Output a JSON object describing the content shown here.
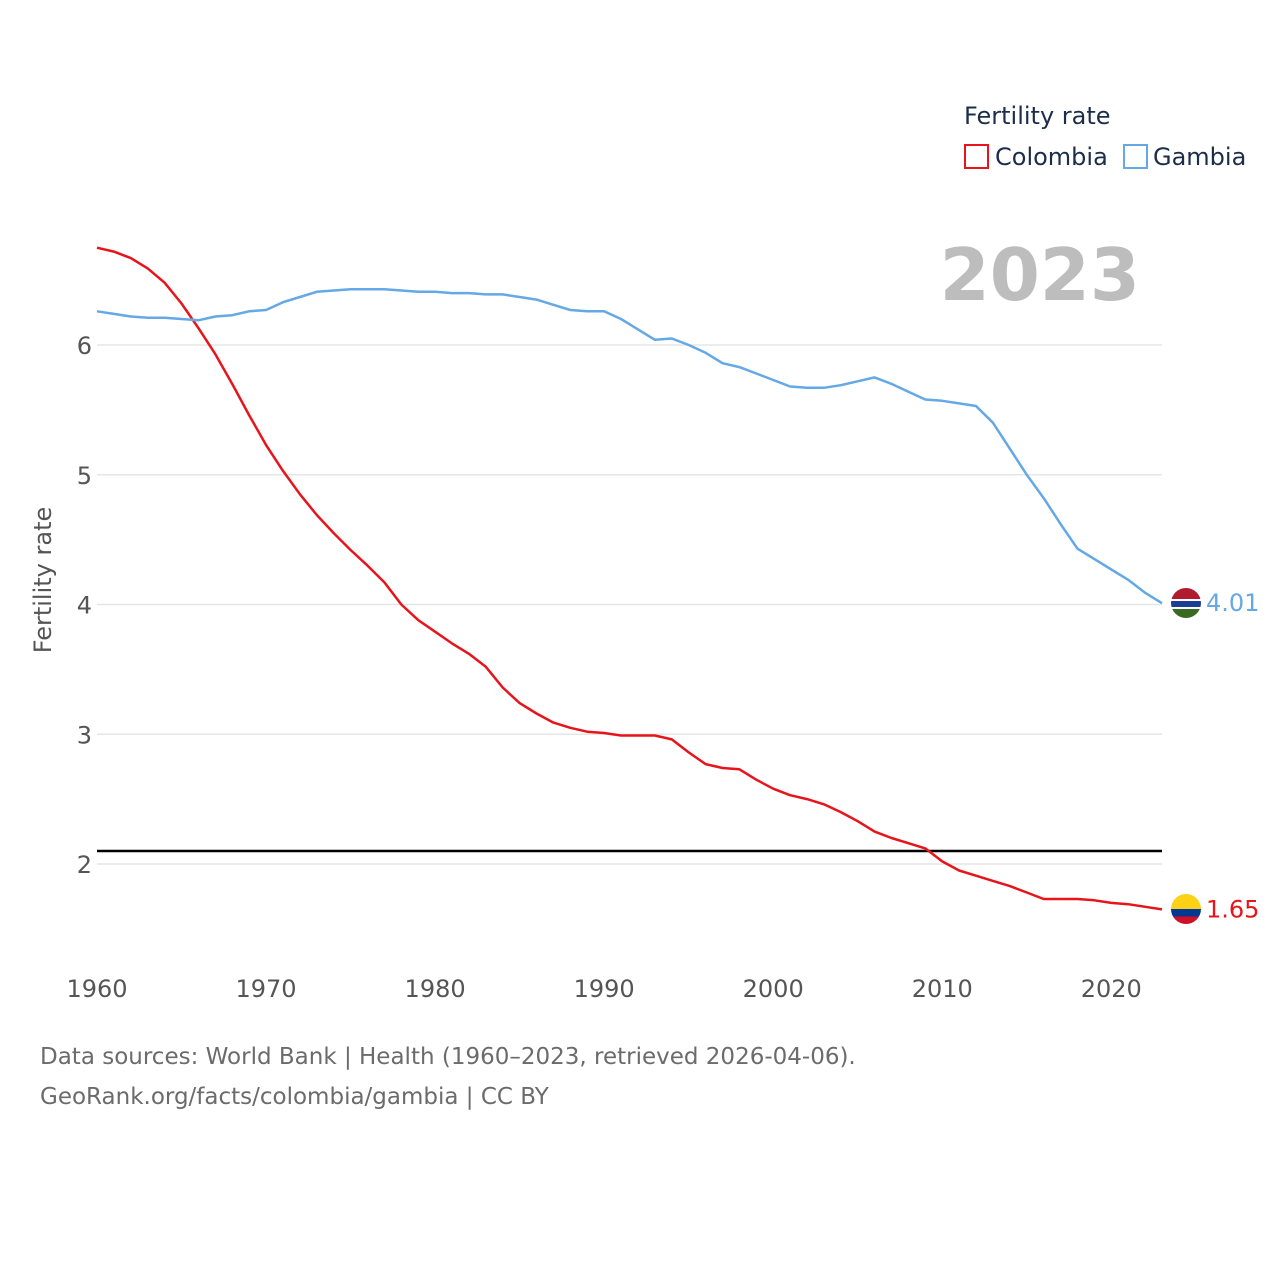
{
  "chart_data": {
    "type": "line",
    "title": "",
    "xlabel": "",
    "ylabel": "Fertility rate",
    "year_display": "2023",
    "legend": {
      "title": "Fertility rate",
      "placement": "top-right"
    },
    "xlim": [
      1960,
      2023
    ],
    "ylim": [
      1.3,
      6.9
    ],
    "x_ticks": [
      1960,
      1970,
      1980,
      1990,
      2000,
      2010,
      2020
    ],
    "y_ticks": [
      2,
      3,
      4,
      5,
      6
    ],
    "grid": true,
    "reference_line": {
      "y": 2.1,
      "color": "#000000"
    },
    "x": [
      1960,
      1961,
      1962,
      1963,
      1964,
      1965,
      1966,
      1967,
      1968,
      1969,
      1970,
      1971,
      1972,
      1973,
      1974,
      1975,
      1976,
      1977,
      1978,
      1979,
      1980,
      1981,
      1982,
      1983,
      1984,
      1985,
      1986,
      1987,
      1988,
      1989,
      1990,
      1991,
      1992,
      1993,
      1994,
      1995,
      1996,
      1997,
      1998,
      1999,
      2000,
      2001,
      2002,
      2003,
      2004,
      2005,
      2006,
      2007,
      2008,
      2009,
      2010,
      2011,
      2012,
      2013,
      2014,
      2015,
      2016,
      2017,
      2018,
      2019,
      2020,
      2021,
      2022,
      2023
    ],
    "series": [
      {
        "name": "Colombia",
        "color": "#e8141b",
        "flag": "colombia",
        "end_label": "1.65",
        "values": [
          6.75,
          6.72,
          6.67,
          6.59,
          6.48,
          6.32,
          6.13,
          5.93,
          5.7,
          5.46,
          5.23,
          5.03,
          4.85,
          4.69,
          4.55,
          4.42,
          4.3,
          4.17,
          4.0,
          3.88,
          3.79,
          3.7,
          3.62,
          3.52,
          3.36,
          3.24,
          3.16,
          3.09,
          3.05,
          3.02,
          3.01,
          2.99,
          2.99,
          2.99,
          2.96,
          2.86,
          2.77,
          2.74,
          2.73,
          2.65,
          2.58,
          2.53,
          2.5,
          2.46,
          2.4,
          2.33,
          2.25,
          2.2,
          2.16,
          2.12,
          2.02,
          1.95,
          1.91,
          1.87,
          1.83,
          1.78,
          1.73,
          1.73,
          1.73,
          1.72,
          1.7,
          1.69,
          1.67,
          1.65
        ]
      },
      {
        "name": "Gambia",
        "color": "#64a8e6",
        "flag": "gambia",
        "end_label": "4.01",
        "values": [
          6.26,
          6.24,
          6.22,
          6.21,
          6.21,
          6.2,
          6.19,
          6.22,
          6.23,
          6.26,
          6.27,
          6.33,
          6.37,
          6.41,
          6.42,
          6.43,
          6.43,
          6.43,
          6.42,
          6.41,
          6.41,
          6.4,
          6.4,
          6.39,
          6.39,
          6.37,
          6.35,
          6.31,
          6.27,
          6.26,
          6.26,
          6.2,
          6.12,
          6.04,
          6.05,
          6.0,
          5.94,
          5.86,
          5.83,
          5.78,
          5.73,
          5.68,
          5.67,
          5.67,
          5.69,
          5.72,
          5.75,
          5.7,
          5.64,
          5.58,
          5.57,
          5.55,
          5.53,
          5.4,
          5.2,
          5.0,
          4.82,
          4.62,
          4.43,
          4.35,
          4.27,
          4.19,
          4.09,
          4.01
        ]
      }
    ]
  },
  "footer": {
    "source_line": "Data sources: World Bank | Health (1960–2023, retrieved 2026-04-06).",
    "credit_line": "GeoRank.org/facts/colombia/gambia | CC BY"
  }
}
